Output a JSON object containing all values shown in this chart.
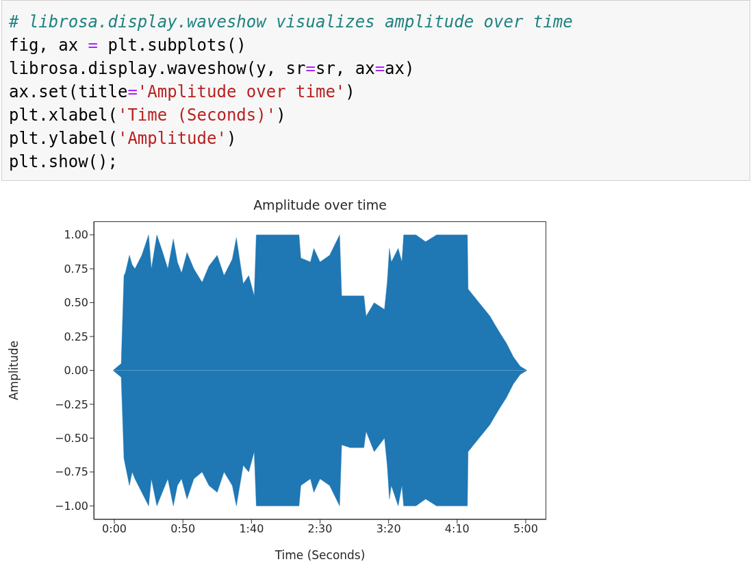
{
  "chart_data": {
    "type": "area",
    "title": "Amplitude over time",
    "xlabel": "Time (Seconds)",
    "ylabel": "Amplitude",
    "annotations": [
      "# librosa.display.waveshow visualizes amplitude over time",
      "fig, ax = plt.subplots()",
      "librosa.display.waveshow(y, sr=sr, ax=ax)",
      "ax.set(title='Amplitude over time')",
      "plt.xlabel('Time (Seconds)')",
      "plt.ylabel('Amplitude')",
      "plt.show();"
    ],
    "xlim": [
      -15,
      315
    ],
    "ylim": [
      -1.1,
      1.1
    ],
    "xticks": [
      {
        "value": 0,
        "label": "0:00"
      },
      {
        "value": 50,
        "label": "0:50"
      },
      {
        "value": 100,
        "label": "1:40"
      },
      {
        "value": 150,
        "label": "2:30"
      },
      {
        "value": 200,
        "label": "3:20"
      },
      {
        "value": 250,
        "label": "4:10"
      },
      {
        "value": 300,
        "label": "5:00"
      }
    ],
    "yticks": [
      {
        "value": -1,
        "label": "−1.00"
      },
      {
        "value": -0.75,
        "label": "−0.75"
      },
      {
        "value": -0.5,
        "label": "−0.50"
      },
      {
        "value": -0.25,
        "label": "−0.25"
      },
      {
        "value": 0,
        "label": "0.00"
      },
      {
        "value": 0.25,
        "label": "0.25"
      },
      {
        "value": 0.5,
        "label": "0.50"
      },
      {
        "value": 0.75,
        "label": "0.75"
      },
      {
        "value": 1,
        "label": "1.00"
      }
    ],
    "x": [
      -1,
      5,
      7,
      8,
      11,
      13,
      15,
      20,
      25,
      27,
      31,
      35,
      39,
      43,
      46,
      49,
      53,
      58,
      64,
      69,
      75,
      80,
      86,
      89,
      94,
      98,
      102,
      103.5,
      134.7,
      136,
      143,
      145.5,
      150,
      157,
      164.3,
      165.8,
      172,
      182,
      183.6,
      189.5,
      197,
      199,
      200.6,
      202,
      207,
      209.7,
      211,
      220,
      227,
      235,
      257.5,
      258,
      262,
      266,
      270,
      274,
      278,
      281,
      286,
      291,
      296,
      301
    ],
    "series": [
      {
        "color": "#1f77b4",
        "values": [
          0,
          0.05,
          0.7,
          0.72,
          0.85,
          0.78,
          0.75,
          0.85,
          1.0,
          0.75,
          1.0,
          0.88,
          0.75,
          0.97,
          0.8,
          0.72,
          0.87,
          0.75,
          0.65,
          0.77,
          0.85,
          0.7,
          0.82,
          0.98,
          0.64,
          0.7,
          0.55,
          1.0,
          1.0,
          0.83,
          0.8,
          0.9,
          0.8,
          0.85,
          1.0,
          0.55,
          0.55,
          0.55,
          0.4,
          0.5,
          0.45,
          0.65,
          0.9,
          0.8,
          0.9,
          0.8,
          1.0,
          1.0,
          0.95,
          1.0,
          1.0,
          0.6,
          0.55,
          0.5,
          0.45,
          0.4,
          0.33,
          0.28,
          0.2,
          0.1,
          0.03,
          0
        ]
      },
      {
        "color": "#1f77b4",
        "values": [
          0,
          -0.05,
          -0.65,
          -0.7,
          -0.85,
          -0.75,
          -0.8,
          -0.9,
          -1.0,
          -0.8,
          -1.0,
          -0.9,
          -0.8,
          -1.0,
          -0.85,
          -0.8,
          -0.95,
          -0.8,
          -0.75,
          -0.85,
          -0.9,
          -0.75,
          -0.85,
          -1.0,
          -0.7,
          -0.75,
          -0.6,
          -1.0,
          -1.0,
          -0.85,
          -0.8,
          -0.9,
          -0.8,
          -0.85,
          -1.0,
          -0.55,
          -0.57,
          -0.57,
          -0.45,
          -0.6,
          -0.5,
          -0.7,
          -0.95,
          -0.85,
          -1.0,
          -0.85,
          -1.0,
          -1.0,
          -0.95,
          -1.0,
          -1.0,
          -0.6,
          -0.55,
          -0.5,
          -0.45,
          -0.4,
          -0.33,
          -0.28,
          -0.2,
          -0.1,
          -0.03,
          0
        ]
      }
    ]
  }
}
